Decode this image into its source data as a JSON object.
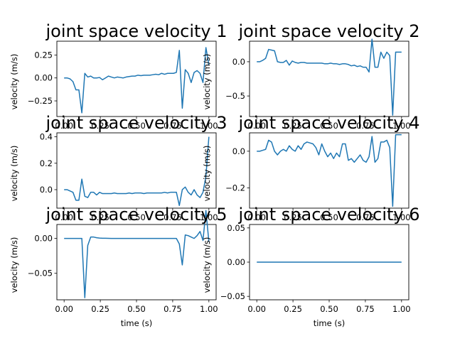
{
  "figure": {
    "line_color": "#1f77b4"
  },
  "chart_data": [
    {
      "type": "line",
      "title": "joint space velocity 1",
      "xlabel": "",
      "ylabel": "velocity (m/s)",
      "xlim": [
        -0.05,
        1.05
      ],
      "ylim": [
        -0.42,
        0.4
      ],
      "xticks": [
        "0.00",
        "0.25",
        "0.50",
        "0.75",
        "1.00"
      ],
      "xtick_values": [
        0,
        0.25,
        0.5,
        0.75,
        1.0
      ],
      "yticks": [
        "−0.25",
        "0.00",
        "0.25"
      ],
      "ytick_values": [
        -0.25,
        0,
        0.25
      ],
      "series": [
        {
          "x": [
            0.0,
            0.0204,
            0.0408,
            0.0612,
            0.0816,
            0.102,
            0.1224,
            0.1429,
            0.1633,
            0.1837,
            0.2041,
            0.2245,
            0.2449,
            0.2653,
            0.2857,
            0.3061,
            0.3265,
            0.3469,
            0.3673,
            0.3878,
            0.4082,
            0.4286,
            0.449,
            0.4694,
            0.4898,
            0.5102,
            0.5306,
            0.551,
            0.5714,
            0.5918,
            0.6122,
            0.6327,
            0.6531,
            0.6735,
            0.6939,
            0.7143,
            0.7347,
            0.7551,
            0.7755,
            0.7959,
            0.8163,
            0.8367,
            0.8571,
            0.8776,
            0.898,
            0.9184,
            0.9388,
            0.9592,
            0.9796,
            1.0
          ],
          "y": [
            0.0,
            0.0,
            -0.01,
            -0.04,
            -0.13,
            -0.13,
            -0.38,
            0.05,
            0.01,
            0.02,
            0.0,
            0.0,
            0.005,
            -0.02,
            0.0,
            0.02,
            0.01,
            0.0,
            0.01,
            0.005,
            0.0,
            0.01,
            0.015,
            0.02,
            0.02,
            0.03,
            0.025,
            0.03,
            0.03,
            0.03,
            0.035,
            0.04,
            0.035,
            0.05,
            0.04,
            0.05,
            0.05,
            0.05,
            0.06,
            0.3,
            -0.33,
            0.09,
            0.05,
            -0.05,
            0.06,
            0.08,
            0.05,
            -0.05,
            0.33,
            0.14
          ]
        }
      ]
    },
    {
      "type": "line",
      "title": "joint space velocity 2",
      "xlabel": "",
      "ylabel": "velocity (m/s)",
      "xlim": [
        -0.05,
        1.05
      ],
      "ylim": [
        -0.8,
        0.3
      ],
      "xticks": [
        "0.00",
        "0.25",
        "0.50",
        "0.75",
        "1.00"
      ],
      "xtick_values": [
        0,
        0.25,
        0.5,
        0.75,
        1.0
      ],
      "yticks": [
        "−0.5",
        "0.0"
      ],
      "ytick_values": [
        -0.5,
        0
      ],
      "series": [
        {
          "x": [
            0.0,
            0.0204,
            0.0408,
            0.0612,
            0.0816,
            0.102,
            0.1224,
            0.1429,
            0.1633,
            0.1837,
            0.2041,
            0.2245,
            0.2449,
            0.2653,
            0.2857,
            0.3061,
            0.3265,
            0.3469,
            0.3673,
            0.3878,
            0.4082,
            0.4286,
            0.449,
            0.4694,
            0.4898,
            0.5102,
            0.5306,
            0.551,
            0.5714,
            0.5918,
            0.6122,
            0.6327,
            0.6531,
            0.6735,
            0.6939,
            0.7143,
            0.7347,
            0.7551,
            0.7755,
            0.7959,
            0.8163,
            0.8367,
            0.8571,
            0.8776,
            0.898,
            0.9184,
            0.9388,
            0.9592,
            0.9796,
            1.0
          ],
          "y": [
            0.0,
            0.0,
            0.02,
            0.05,
            0.18,
            0.17,
            0.16,
            0.0,
            -0.01,
            -0.01,
            0.02,
            -0.05,
            0.01,
            -0.01,
            -0.02,
            -0.01,
            -0.01,
            -0.02,
            -0.02,
            -0.02,
            -0.02,
            -0.02,
            -0.02,
            -0.03,
            -0.03,
            -0.02,
            -0.03,
            -0.03,
            -0.04,
            -0.03,
            -0.03,
            -0.04,
            -0.06,
            -0.05,
            -0.07,
            -0.06,
            -0.08,
            -0.08,
            -0.15,
            0.33,
            -0.08,
            -0.08,
            0.14,
            0.05,
            0.14,
            0.09,
            -0.78,
            0.14,
            0.14,
            0.14
          ]
        }
      ]
    },
    {
      "type": "line",
      "title": "joint space velocity 3",
      "xlabel": "",
      "ylabel": "velocity (m/s)",
      "xlim": [
        -0.05,
        1.05
      ],
      "ylim": [
        -0.14,
        0.43
      ],
      "xticks": [
        "0.00",
        "0.25",
        "0.50",
        "0.75",
        "1.00"
      ],
      "xtick_values": [
        0,
        0.25,
        0.5,
        0.75,
        1.0
      ],
      "yticks": [
        "0.0",
        "0.2",
        "0.4"
      ],
      "ytick_values": [
        0,
        0.2,
        0.4
      ],
      "series": [
        {
          "x": [
            0.0,
            0.0204,
            0.0408,
            0.0612,
            0.0816,
            0.102,
            0.1224,
            0.1429,
            0.1633,
            0.1837,
            0.2041,
            0.2245,
            0.2449,
            0.2653,
            0.2857,
            0.3061,
            0.3265,
            0.3469,
            0.3673,
            0.3878,
            0.4082,
            0.4286,
            0.449,
            0.4694,
            0.4898,
            0.5102,
            0.5306,
            0.551,
            0.5714,
            0.5918,
            0.6122,
            0.6327,
            0.6531,
            0.6735,
            0.6939,
            0.7143,
            0.7347,
            0.7551,
            0.7755,
            0.7959,
            0.8163,
            0.8367,
            0.8571,
            0.8776,
            0.898,
            0.9184,
            0.9388,
            0.9592,
            0.9796,
            1.0
          ],
          "y": [
            0.0,
            0.0,
            -0.01,
            -0.02,
            -0.08,
            -0.08,
            0.08,
            -0.05,
            -0.06,
            -0.02,
            -0.02,
            -0.04,
            -0.02,
            -0.03,
            -0.03,
            -0.03,
            -0.03,
            -0.025,
            -0.03,
            -0.03,
            -0.03,
            -0.03,
            -0.025,
            -0.03,
            -0.025,
            -0.025,
            -0.025,
            -0.03,
            -0.025,
            -0.025,
            -0.025,
            -0.025,
            -0.025,
            -0.025,
            -0.02,
            -0.025,
            -0.02,
            -0.02,
            -0.02,
            -0.12,
            0.0,
            0.02,
            -0.02,
            -0.04,
            0.0,
            -0.04,
            -0.06,
            -0.02,
            0.1,
            0.4
          ]
        }
      ]
    },
    {
      "type": "line",
      "title": "joint space velocity 4",
      "xlabel": "",
      "ylabel": "velocity (m/s)",
      "xlim": [
        -0.05,
        1.05
      ],
      "ylim": [
        -0.31,
        0.1
      ],
      "xticks": [
        "0.00",
        "0.25",
        "0.50",
        "0.75",
        "1.00"
      ],
      "xtick_values": [
        0,
        0.25,
        0.5,
        0.75,
        1.0
      ],
      "yticks": [
        "−0.2",
        "0.0"
      ],
      "ytick_values": [
        -0.2,
        0
      ],
      "series": [
        {
          "x": [
            0.0,
            0.0204,
            0.0408,
            0.0612,
            0.0816,
            0.102,
            0.1224,
            0.1429,
            0.1633,
            0.1837,
            0.2041,
            0.2245,
            0.2449,
            0.2653,
            0.2857,
            0.3061,
            0.3265,
            0.3469,
            0.3673,
            0.3878,
            0.4082,
            0.4286,
            0.449,
            0.4694,
            0.4898,
            0.5102,
            0.5306,
            0.551,
            0.5714,
            0.5918,
            0.6122,
            0.6327,
            0.6531,
            0.6735,
            0.6939,
            0.7143,
            0.7347,
            0.7551,
            0.7755,
            0.7959,
            0.8163,
            0.8367,
            0.8571,
            0.8776,
            0.898,
            0.9184,
            0.9388,
            0.9592,
            0.9796,
            1.0
          ],
          "y": [
            0.0,
            0.0,
            0.005,
            0.01,
            0.06,
            0.05,
            0.0,
            -0.02,
            0.0,
            0.01,
            0.0,
            0.03,
            0.01,
            0.0,
            0.03,
            0.01,
            0.04,
            0.05,
            0.045,
            0.04,
            0.02,
            -0.02,
            0.04,
            0.0,
            -0.03,
            -0.01,
            -0.04,
            -0.01,
            -0.03,
            0.04,
            0.04,
            -0.05,
            -0.04,
            -0.06,
            -0.04,
            -0.02,
            -0.05,
            -0.06,
            -0.03,
            0.08,
            -0.06,
            -0.04,
            0.05,
            0.05,
            0.06,
            0.02,
            -0.3,
            0.09,
            0.09,
            0.09
          ]
        }
      ]
    },
    {
      "type": "line",
      "title": "joint space velocity 5",
      "xlabel": "time (s)",
      "ylabel": "velocity (m/s)",
      "xlim": [
        -0.05,
        1.05
      ],
      "ylim": [
        -0.088,
        0.02
      ],
      "xticks": [
        "0.00",
        "0.25",
        "0.50",
        "0.75",
        "1.00"
      ],
      "xtick_values": [
        0,
        0.25,
        0.5,
        0.75,
        1.0
      ],
      "yticks": [
        "−0.05",
        "0.00"
      ],
      "ytick_values": [
        -0.05,
        0
      ],
      "series": [
        {
          "x": [
            0.0,
            0.0204,
            0.0408,
            0.0612,
            0.0816,
            0.102,
            0.1224,
            0.1429,
            0.1633,
            0.1837,
            0.2041,
            0.2245,
            0.2449,
            0.2653,
            0.2857,
            0.3061,
            0.3265,
            0.3469,
            0.3673,
            0.3878,
            0.4082,
            0.4286,
            0.449,
            0.4694,
            0.4898,
            0.5102,
            0.5306,
            0.551,
            0.5714,
            0.5918,
            0.6122,
            0.6327,
            0.6531,
            0.6735,
            0.6939,
            0.7143,
            0.7347,
            0.7551,
            0.7755,
            0.7959,
            0.8163,
            0.8367,
            0.8571,
            0.8776,
            0.898,
            0.9184,
            0.9388,
            0.9592,
            0.9796,
            1.0
          ],
          "y": [
            0.0,
            0.0,
            0.0,
            0.0,
            0.0,
            0.0,
            0.0,
            -0.085,
            -0.01,
            0.002,
            0.002,
            0.001,
            0.0005,
            0.0003,
            0.0002,
            0.0001,
            0.0,
            0.0,
            0.0,
            0.0,
            0.0,
            0.0,
            0.0,
            0.0,
            0.0,
            0.0,
            0.0,
            0.0,
            0.0,
            0.0,
            0.0,
            0.0,
            0.0,
            0.0,
            0.0,
            0.0,
            0.0,
            0.0,
            0.0,
            -0.008,
            -0.038,
            0.005,
            0.004,
            0.002,
            0.0,
            0.004,
            0.01,
            -0.003,
            0.04,
            -0.005
          ]
        }
      ]
    },
    {
      "type": "line",
      "title": "joint space velocity 6",
      "xlabel": "time (s)",
      "ylabel": "velocity (m/s)",
      "xlim": [
        -0.05,
        1.05
      ],
      "ylim": [
        -0.055,
        0.055
      ],
      "xticks": [
        "0.00",
        "0.25",
        "0.50",
        "0.75",
        "1.00"
      ],
      "xtick_values": [
        0,
        0.25,
        0.5,
        0.75,
        1.0
      ],
      "yticks": [
        "−0.05",
        "0.00",
        "0.05"
      ],
      "ytick_values": [
        -0.05,
        0,
        0.05
      ],
      "series": [
        {
          "x": [
            0.0,
            1.0
          ],
          "y": [
            0.0,
            0.0
          ]
        }
      ]
    }
  ]
}
